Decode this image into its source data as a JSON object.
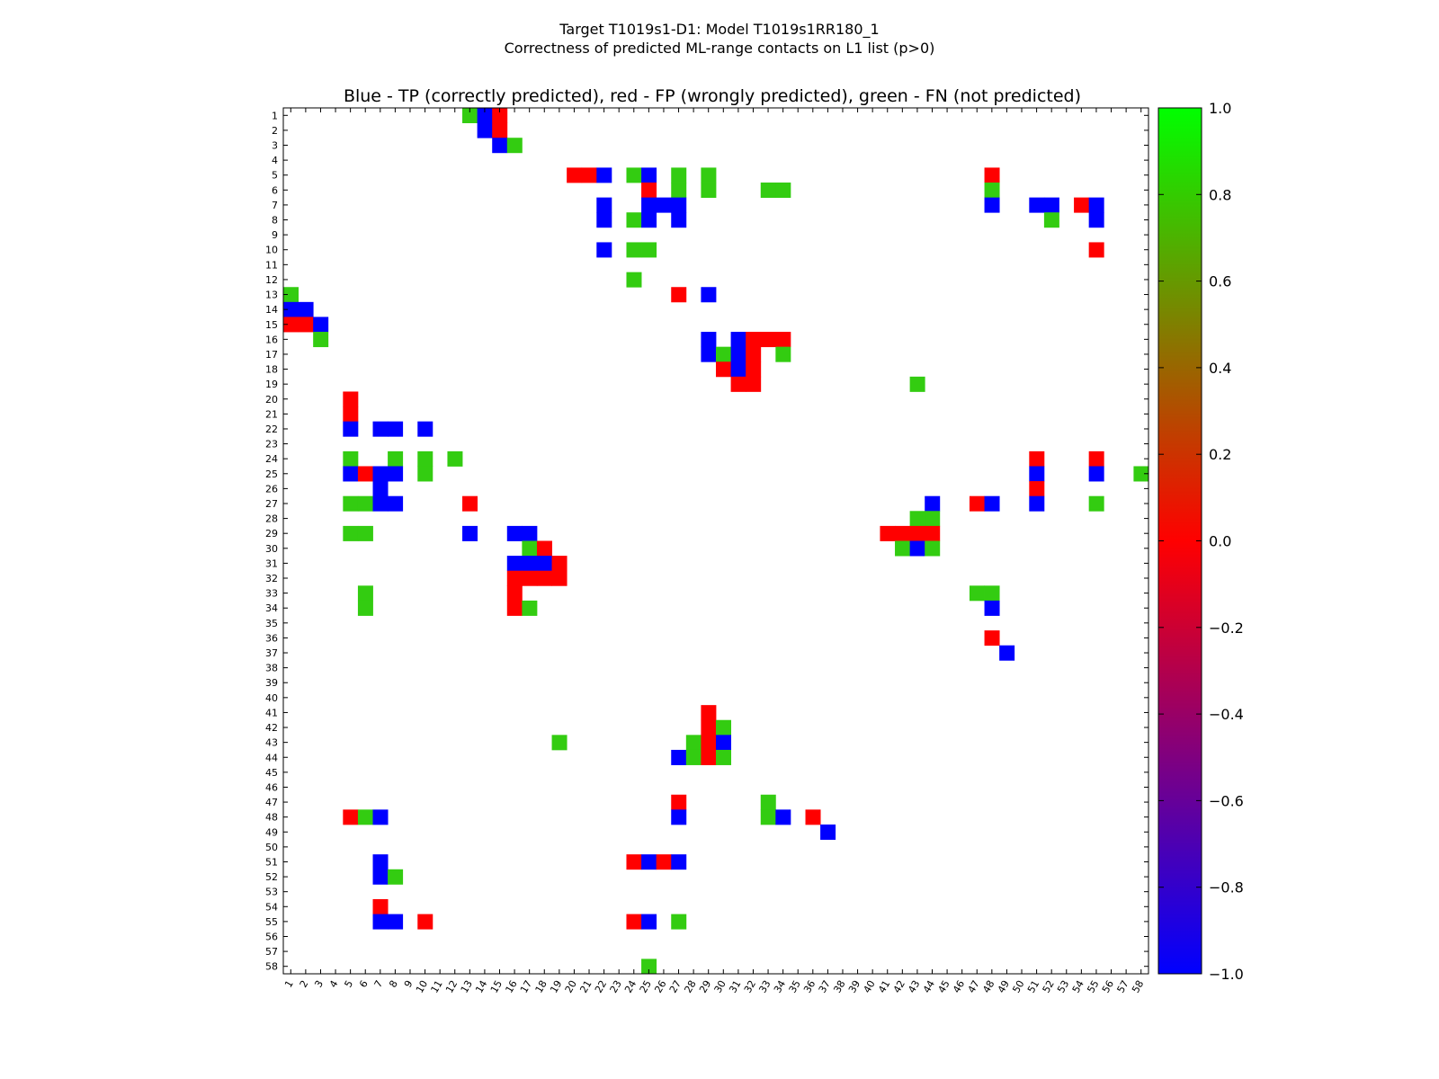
{
  "chart_data": {
    "type": "heatmap",
    "suptitle_line1": "Target T1019s1-D1: Model T1019s1RR180_1",
    "suptitle_line2": "Correctness of predicted ML-range contacts on L1 list (p>0)",
    "title": "Blue - TP (correctly predicted), red - FP (wrongly predicted), green - FN (not predicted)",
    "n": 58,
    "x_tick_labels": [
      "1",
      "2",
      "3",
      "4",
      "5",
      "6",
      "7",
      "8",
      "9",
      "10",
      "11",
      "12",
      "13",
      "14",
      "15",
      "16",
      "17",
      "18",
      "19",
      "20",
      "21",
      "22",
      "23",
      "24",
      "25",
      "26",
      "27",
      "28",
      "29",
      "30",
      "31",
      "32",
      "33",
      "34",
      "35",
      "36",
      "37",
      "38",
      "39",
      "40",
      "41",
      "42",
      "43",
      "44",
      "45",
      "46",
      "47",
      "48",
      "49",
      "50",
      "51",
      "52",
      "53",
      "54",
      "55",
      "56",
      "57",
      "58"
    ],
    "y_tick_labels": [
      "1",
      "2",
      "3",
      "4",
      "5",
      "6",
      "7",
      "8",
      "9",
      "10",
      "11",
      "12",
      "13",
      "14",
      "15",
      "16",
      "17",
      "18",
      "19",
      "20",
      "21",
      "22",
      "23",
      "24",
      "25",
      "26",
      "27",
      "28",
      "29",
      "30",
      "31",
      "32",
      "33",
      "34",
      "35",
      "36",
      "37",
      "38",
      "39",
      "40",
      "41",
      "42",
      "43",
      "44",
      "45",
      "46",
      "47",
      "48",
      "49",
      "50",
      "51",
      "52",
      "53",
      "54",
      "55",
      "56",
      "57",
      "58"
    ],
    "colorbar": {
      "vmin": -1.0,
      "vmax": 1.0,
      "ticks": [
        "1.0",
        "0.8",
        "0.6",
        "0.4",
        "0.2",
        "0.0",
        "−0.2",
        "−0.4",
        "−0.6",
        "−0.8",
        "−1.0"
      ],
      "tick_values": [
        1.0,
        0.8,
        0.6,
        0.4,
        0.2,
        0.0,
        -0.2,
        -0.4,
        -0.6,
        -0.8,
        -1.0
      ]
    },
    "legend": {
      "TP": -1,
      "FP": 0,
      "FN": 1
    },
    "colors": {
      "TP": "#0000ff",
      "FP": "#ff0000",
      "FN": "#33cc11"
    },
    "cells": [
      [
        1,
        13,
        1
      ],
      [
        1,
        14,
        -1
      ],
      [
        1,
        15,
        0
      ],
      [
        2,
        14,
        -1
      ],
      [
        2,
        15,
        0
      ],
      [
        3,
        15,
        -1
      ],
      [
        3,
        16,
        1
      ],
      [
        5,
        20,
        0
      ],
      [
        5,
        21,
        0
      ],
      [
        5,
        22,
        -1
      ],
      [
        5,
        24,
        1
      ],
      [
        5,
        25,
        -1
      ],
      [
        5,
        27,
        1
      ],
      [
        5,
        29,
        1
      ],
      [
        5,
        48,
        0
      ],
      [
        6,
        25,
        0
      ],
      [
        6,
        27,
        1
      ],
      [
        6,
        29,
        1
      ],
      [
        6,
        33,
        1
      ],
      [
        6,
        34,
        1
      ],
      [
        6,
        48,
        1
      ],
      [
        7,
        22,
        -1
      ],
      [
        7,
        25,
        -1
      ],
      [
        7,
        26,
        -1
      ],
      [
        7,
        27,
        -1
      ],
      [
        7,
        48,
        -1
      ],
      [
        7,
        51,
        -1
      ],
      [
        7,
        52,
        -1
      ],
      [
        7,
        54,
        0
      ],
      [
        7,
        55,
        -1
      ],
      [
        8,
        22,
        -1
      ],
      [
        8,
        24,
        1
      ],
      [
        8,
        25,
        -1
      ],
      [
        8,
        27,
        -1
      ],
      [
        8,
        52,
        1
      ],
      [
        8,
        55,
        -1
      ],
      [
        10,
        22,
        -1
      ],
      [
        10,
        24,
        1
      ],
      [
        10,
        25,
        1
      ],
      [
        10,
        55,
        0
      ],
      [
        12,
        24,
        1
      ],
      [
        13,
        1,
        1
      ],
      [
        13,
        27,
        0
      ],
      [
        13,
        29,
        -1
      ],
      [
        14,
        1,
        -1
      ],
      [
        14,
        2,
        -1
      ],
      [
        15,
        1,
        0
      ],
      [
        15,
        2,
        0
      ],
      [
        15,
        3,
        -1
      ],
      [
        16,
        3,
        1
      ],
      [
        16,
        29,
        -1
      ],
      [
        16,
        31,
        -1
      ],
      [
        16,
        32,
        0
      ],
      [
        16,
        33,
        0
      ],
      [
        16,
        34,
        0
      ],
      [
        17,
        29,
        -1
      ],
      [
        17,
        30,
        1
      ],
      [
        17,
        31,
        -1
      ],
      [
        17,
        32,
        0
      ],
      [
        17,
        34,
        1
      ],
      [
        18,
        30,
        0
      ],
      [
        18,
        31,
        -1
      ],
      [
        18,
        32,
        0
      ],
      [
        19,
        31,
        0
      ],
      [
        19,
        32,
        0
      ],
      [
        19,
        43,
        1
      ],
      [
        20,
        5,
        0
      ],
      [
        21,
        5,
        0
      ],
      [
        22,
        5,
        -1
      ],
      [
        22,
        7,
        -1
      ],
      [
        22,
        8,
        -1
      ],
      [
        22,
        10,
        -1
      ],
      [
        24,
        5,
        1
      ],
      [
        24,
        8,
        1
      ],
      [
        24,
        10,
        1
      ],
      [
        24,
        12,
        1
      ],
      [
        24,
        51,
        0
      ],
      [
        24,
        55,
        0
      ],
      [
        25,
        5,
        -1
      ],
      [
        25,
        6,
        0
      ],
      [
        25,
        7,
        -1
      ],
      [
        25,
        8,
        -1
      ],
      [
        25,
        10,
        1
      ],
      [
        25,
        51,
        -1
      ],
      [
        25,
        55,
        -1
      ],
      [
        25,
        58,
        1
      ],
      [
        26,
        7,
        -1
      ],
      [
        26,
        51,
        0
      ],
      [
        27,
        5,
        1
      ],
      [
        27,
        6,
        1
      ],
      [
        27,
        7,
        -1
      ],
      [
        27,
        8,
        -1
      ],
      [
        27,
        13,
        0
      ],
      [
        27,
        44,
        -1
      ],
      [
        27,
        47,
        0
      ],
      [
        27,
        48,
        -1
      ],
      [
        27,
        51,
        -1
      ],
      [
        27,
        55,
        1
      ],
      [
        28,
        43,
        1
      ],
      [
        28,
        44,
        1
      ],
      [
        29,
        5,
        1
      ],
      [
        29,
        6,
        1
      ],
      [
        29,
        13,
        -1
      ],
      [
        29,
        16,
        -1
      ],
      [
        29,
        17,
        -1
      ],
      [
        29,
        41,
        0
      ],
      [
        29,
        42,
        0
      ],
      [
        29,
        43,
        0
      ],
      [
        29,
        44,
        0
      ],
      [
        30,
        17,
        1
      ],
      [
        30,
        18,
        0
      ],
      [
        30,
        42,
        1
      ],
      [
        30,
        43,
        -1
      ],
      [
        30,
        44,
        1
      ],
      [
        31,
        16,
        -1
      ],
      [
        31,
        17,
        -1
      ],
      [
        31,
        18,
        -1
      ],
      [
        31,
        19,
        0
      ],
      [
        32,
        16,
        0
      ],
      [
        32,
        17,
        0
      ],
      [
        32,
        18,
        0
      ],
      [
        32,
        19,
        0
      ],
      [
        33,
        6,
        1
      ],
      [
        33,
        16,
        0
      ],
      [
        33,
        47,
        1
      ],
      [
        33,
        48,
        1
      ],
      [
        34,
        6,
        1
      ],
      [
        34,
        16,
        0
      ],
      [
        34,
        17,
        1
      ],
      [
        34,
        48,
        -1
      ],
      [
        36,
        48,
        0
      ],
      [
        37,
        49,
        -1
      ],
      [
        41,
        29,
        0
      ],
      [
        42,
        29,
        0
      ],
      [
        42,
        30,
        1
      ],
      [
        43,
        19,
        1
      ],
      [
        43,
        28,
        1
      ],
      [
        43,
        29,
        0
      ],
      [
        43,
        30,
        -1
      ],
      [
        44,
        27,
        -1
      ],
      [
        44,
        28,
        1
      ],
      [
        44,
        29,
        0
      ],
      [
        44,
        30,
        1
      ],
      [
        47,
        27,
        0
      ],
      [
        47,
        33,
        1
      ],
      [
        48,
        5,
        0
      ],
      [
        48,
        6,
        1
      ],
      [
        48,
        7,
        -1
      ],
      [
        48,
        27,
        -1
      ],
      [
        48,
        33,
        1
      ],
      [
        48,
        34,
        -1
      ],
      [
        48,
        36,
        0
      ],
      [
        49,
        37,
        -1
      ],
      [
        51,
        7,
        -1
      ],
      [
        51,
        24,
        0
      ],
      [
        51,
        25,
        -1
      ],
      [
        51,
        26,
        0
      ],
      [
        51,
        27,
        -1
      ],
      [
        52,
        7,
        -1
      ],
      [
        52,
        8,
        1
      ],
      [
        54,
        7,
        0
      ],
      [
        55,
        7,
        -1
      ],
      [
        55,
        8,
        -1
      ],
      [
        55,
        10,
        0
      ],
      [
        55,
        24,
        0
      ],
      [
        55,
        25,
        -1
      ],
      [
        55,
        27,
        1
      ],
      [
        58,
        25,
        1
      ]
    ]
  }
}
